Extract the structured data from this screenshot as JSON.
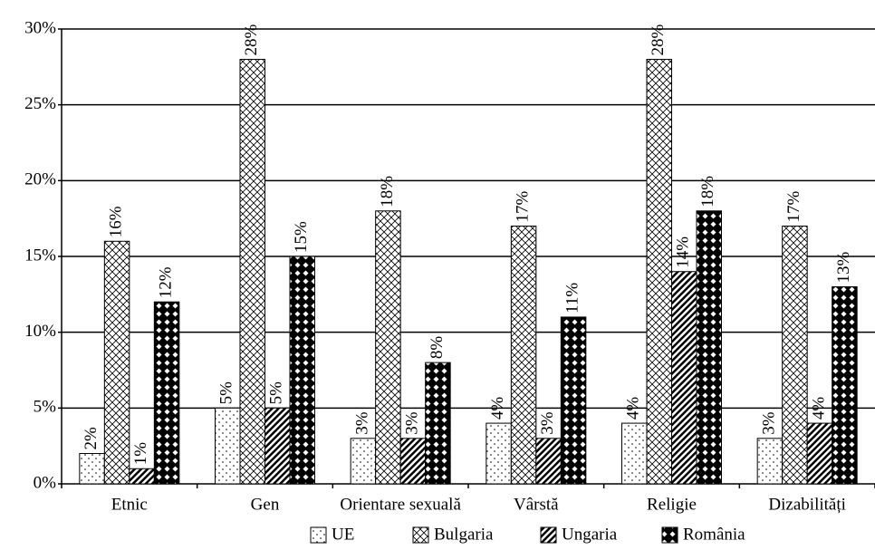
{
  "chart_data": {
    "type": "bar",
    "categories": [
      "Etnic",
      "Gen",
      "Orientare sexuală",
      "Vârstă",
      "Religie",
      "Dizabilități"
    ],
    "series": [
      {
        "name": "UE",
        "values": [
          2,
          5,
          3,
          4,
          4,
          3
        ],
        "value_labels": [
          "2%",
          "5%",
          "3%",
          "4%",
          "4%",
          "3%"
        ]
      },
      {
        "name": "Bulgaria",
        "values": [
          16,
          28,
          18,
          17,
          28,
          17
        ],
        "value_labels": [
          "16%",
          "28%",
          "18%",
          "17%",
          "28%",
          "17%"
        ]
      },
      {
        "name": "Ungaria",
        "values": [
          1,
          5,
          3,
          3,
          14,
          4
        ],
        "value_labels": [
          "1%",
          "5%",
          "3%",
          "3%",
          "14%",
          "4%"
        ]
      },
      {
        "name": "România",
        "values": [
          12,
          15,
          8,
          11,
          18,
          13
        ],
        "value_labels": [
          "12%",
          "15%",
          "8%",
          "11%",
          "18%",
          "13%"
        ]
      }
    ],
    "ylim": [
      0,
      30
    ],
    "yticks": [
      {
        "value": 0,
        "label": "0%"
      },
      {
        "value": 5,
        "label": "5%"
      },
      {
        "value": 10,
        "label": "10%"
      },
      {
        "value": 15,
        "label": "15%"
      },
      {
        "value": 20,
        "label": "20%"
      },
      {
        "value": 25,
        "label": "25%"
      },
      {
        "value": 30,
        "label": "30%"
      }
    ],
    "grid": true,
    "legend": "bottom"
  }
}
